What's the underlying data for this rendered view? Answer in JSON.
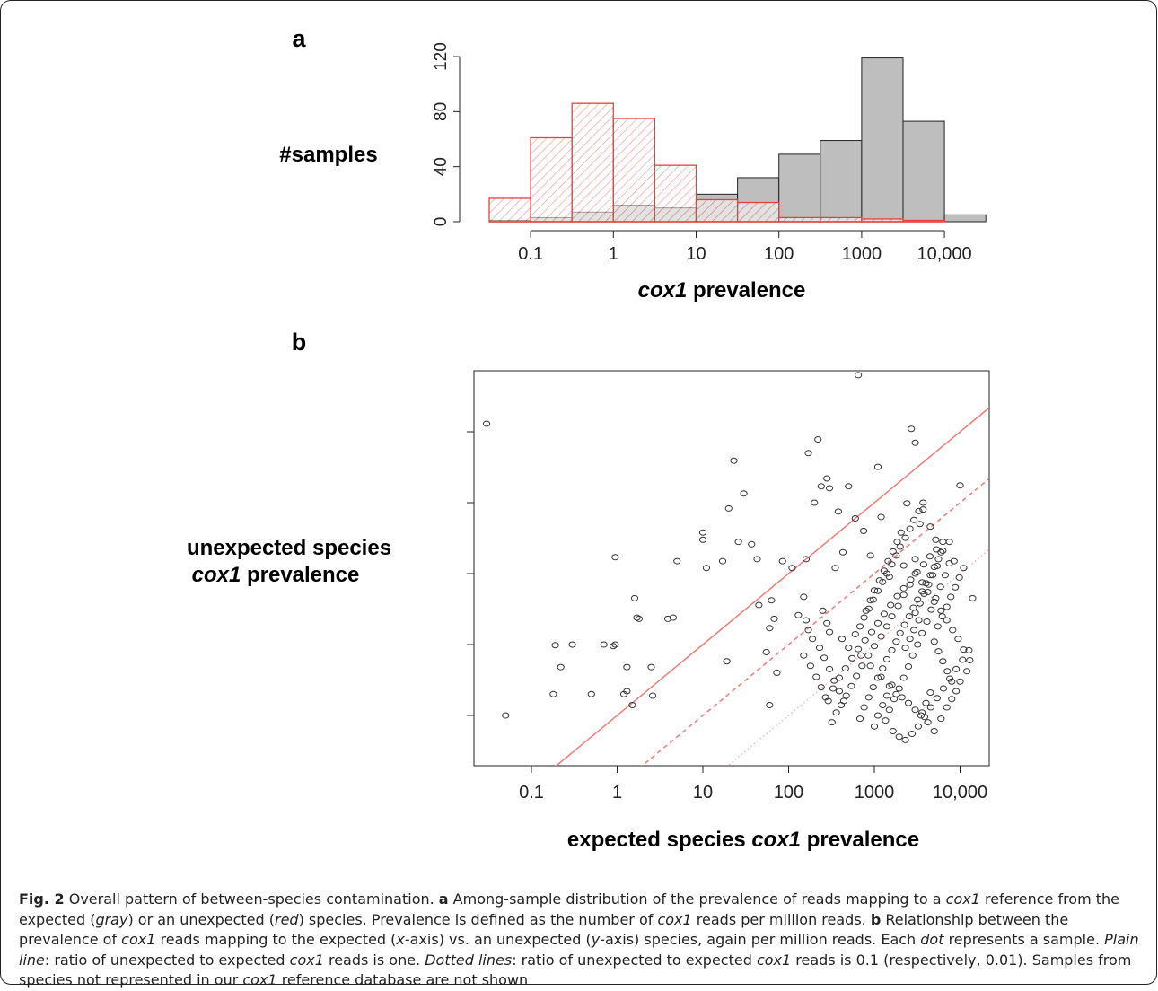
{
  "panel_a": {
    "letter": "a",
    "ylabel": "#samples",
    "xlabel_italic": "cox1",
    "xlabel_rest": " prevalence",
    "y_ticks": [
      "0",
      "40",
      "80",
      "120"
    ],
    "x_ticks": [
      "0.1",
      "1",
      "10",
      "100",
      "1000",
      "10,000"
    ]
  },
  "panel_b": {
    "letter": "b",
    "ylabel_line1": "unexpected species",
    "ylabel_line2_italic": "cox1",
    "ylabel_line2_rest": " prevalence",
    "xlabel_prefix": "expected species ",
    "xlabel_italic": "cox1",
    "xlabel_rest": " prevalence",
    "x_ticks": [
      "0.1",
      "1",
      "10",
      "100",
      "1000",
      "10,000"
    ]
  },
  "colors": {
    "gray_bar": "#bebebe",
    "red": "#e8413c",
    "red_line": "#f07a75",
    "dotted_line": "#f2a8a5",
    "axis": "#222222"
  },
  "chart_data": [
    {
      "type": "bar",
      "x_scale": "log10",
      "bin_edges": [
        0.0316,
        0.1,
        0.316,
        1,
        3.16,
        10,
        31.6,
        100,
        316,
        1000,
        3160,
        10000,
        31600
      ],
      "ylim": [
        0,
        125
      ],
      "series": [
        {
          "name": "gray",
          "values": [
            1,
            3,
            7,
            12,
            10,
            20,
            32,
            49,
            59,
            119,
            73,
            5
          ]
        },
        {
          "name": "red",
          "values": [
            17,
            61,
            86,
            75,
            41,
            16,
            14,
            3,
            3,
            2,
            1,
            0
          ]
        }
      ]
    },
    {
      "type": "scatter",
      "x_scale": "log10",
      "y_scale": "log10",
      "xlim": [
        0.02,
        20000
      ],
      "ylim": [
        0.02,
        100000
      ],
      "lines": [
        {
          "ratio": 1,
          "style": "solid"
        },
        {
          "ratio": 0.1,
          "style": "dashed"
        },
        {
          "ratio": 0.01,
          "style": "dotted"
        }
      ],
      "points": [
        [
          0.03,
          13000
        ],
        [
          0.05,
          1.0
        ],
        [
          0.18,
          2.0
        ],
        [
          0.19,
          9.8
        ],
        [
          0.22,
          4.8
        ],
        [
          0.3,
          10
        ],
        [
          0.5,
          2.0
        ],
        [
          0.7,
          10
        ],
        [
          0.9,
          9.5
        ],
        [
          0.95,
          10
        ],
        [
          0.95,
          170
        ],
        [
          1.2,
          2.0
        ],
        [
          1.3,
          2.2
        ],
        [
          1.5,
          1.4
        ],
        [
          1.3,
          4.8
        ],
        [
          1.6,
          45
        ],
        [
          1.7,
          24
        ],
        [
          1.8,
          23
        ],
        [
          2.5,
          4.8
        ],
        [
          2.6,
          1.9
        ],
        [
          3.9,
          23
        ],
        [
          4.5,
          24
        ],
        [
          5.0,
          150
        ],
        [
          10,
          380
        ],
        [
          10,
          300
        ],
        [
          11,
          120
        ],
        [
          17,
          150
        ],
        [
          19,
          5.8
        ],
        [
          20,
          830
        ],
        [
          23,
          3900
        ],
        [
          26,
          280
        ],
        [
          30,
          1350
        ],
        [
          37,
          260
        ],
        [
          43,
          160
        ],
        [
          45,
          36
        ],
        [
          60,
          1.4
        ],
        [
          55,
          7.8
        ],
        [
          60,
          17
        ],
        [
          63,
          42
        ],
        [
          68,
          23
        ],
        [
          73,
          4.0
        ],
        [
          85,
          150
        ],
        [
          110,
          120
        ],
        [
          130,
          26
        ],
        [
          150,
          47
        ],
        [
          160,
          160
        ],
        [
          170,
          5000
        ],
        [
          200,
          1000
        ],
        [
          220,
          7800
        ],
        [
          240,
          1700
        ],
        [
          280,
          2200
        ],
        [
          300,
          1600
        ],
        [
          380,
          750
        ],
        [
          430,
          200
        ],
        [
          500,
          1700
        ],
        [
          600,
          600
        ],
        [
          650,
          63000
        ],
        [
          750,
          400
        ],
        [
          1100,
          3200
        ],
        [
          1200,
          630
        ],
        [
          2400,
          980
        ],
        [
          2700,
          11000
        ],
        [
          3000,
          7000
        ],
        [
          3400,
          500
        ],
        [
          3700,
          800
        ],
        [
          4500,
          460
        ],
        [
          10000,
          1750
        ],
        [
          350,
          120
        ],
        [
          900,
          180
        ],
        [
          1500,
          90
        ],
        [
          2200,
          130
        ],
        [
          3000,
          160
        ],
        [
          5200,
          300
        ],
        [
          6000,
          200
        ],
        [
          7500,
          280
        ],
        [
          8500,
          150
        ],
        [
          14000,
          45
        ],
        [
          250,
          30
        ],
        [
          280,
          20
        ],
        [
          300,
          15
        ],
        [
          420,
          12
        ],
        [
          500,
          9
        ],
        [
          700,
          7
        ],
        [
          900,
          5
        ],
        [
          1200,
          3.5
        ],
        [
          1500,
          2.6
        ],
        [
          1800,
          2.0
        ],
        [
          2100,
          1.8
        ],
        [
          2500,
          1.5
        ],
        [
          3000,
          1.2
        ],
        [
          3500,
          1.0
        ],
        [
          4200,
          0.8
        ],
        [
          5000,
          0.6
        ],
        [
          6000,
          0.9
        ],
        [
          7000,
          1.3
        ],
        [
          8000,
          1.7
        ],
        [
          9000,
          2.2
        ],
        [
          10000,
          3.0
        ],
        [
          12000,
          4.2
        ],
        [
          13000,
          6.0
        ],
        [
          11000,
          8.5
        ],
        [
          9500,
          12
        ],
        [
          8200,
          16
        ],
        [
          7000,
          22
        ],
        [
          6000,
          30
        ],
        [
          5000,
          40
        ],
        [
          4200,
          55
        ],
        [
          3600,
          75
        ],
        [
          3000,
          100
        ],
        [
          2600,
          70
        ],
        [
          2200,
          50
        ],
        [
          1900,
          35
        ],
        [
          1600,
          25
        ],
        [
          1400,
          18
        ],
        [
          1200,
          13
        ],
        [
          1000,
          9.5
        ],
        [
          850,
          7.0
        ],
        [
          720,
          5.0
        ],
        [
          620,
          3.6
        ],
        [
          540,
          2.6
        ],
        [
          470,
          1.9
        ],
        [
          410,
          1.4
        ],
        [
          360,
          1.1
        ],
        [
          320,
          0.8
        ],
        [
          290,
          1.6
        ],
        [
          330,
          2.4
        ],
        [
          390,
          3.4
        ],
        [
          460,
          4.6
        ],
        [
          550,
          6.4
        ],
        [
          650,
          8.6
        ],
        [
          780,
          11.5
        ],
        [
          930,
          15
        ],
        [
          1100,
          20
        ],
        [
          1300,
          27
        ],
        [
          1550,
          36
        ],
        [
          1850,
          48
        ],
        [
          2200,
          62
        ],
        [
          2650,
          82
        ],
        [
          3150,
          105
        ],
        [
          3750,
          135
        ],
        [
          4450,
          175
        ],
        [
          5300,
          220
        ],
        [
          6300,
          280
        ],
        [
          7500,
          140
        ],
        [
          6700,
          95
        ],
        [
          5900,
          65
        ],
        [
          5200,
          45
        ],
        [
          4600,
          31
        ],
        [
          4100,
          21
        ],
        [
          3600,
          14.5
        ],
        [
          3200,
          10
        ],
        [
          2800,
          7
        ],
        [
          2500,
          4.9
        ],
        [
          2200,
          3.4
        ],
        [
          1950,
          2.4
        ],
        [
          1700,
          1.7
        ],
        [
          1500,
          1.2
        ],
        [
          1350,
          0.85
        ],
        [
          1650,
          0.6
        ],
        [
          1950,
          0.5
        ],
        [
          2300,
          0.45
        ],
        [
          2750,
          0.55
        ],
        [
          3250,
          0.7
        ],
        [
          3850,
          0.95
        ],
        [
          4550,
          1.3
        ],
        [
          5400,
          1.75
        ],
        [
          6400,
          2.4
        ],
        [
          7600,
          3.3
        ],
        [
          9000,
          4.5
        ],
        [
          10700,
          6.1
        ],
        [
          12700,
          8.3
        ],
        [
          800,
          30
        ],
        [
          900,
          42
        ],
        [
          1000,
          58
        ],
        [
          1150,
          80
        ],
        [
          1300,
          110
        ],
        [
          1450,
          150
        ],
        [
          1650,
          205
        ],
        [
          1850,
          280
        ],
        [
          2050,
          380
        ],
        [
          230,
          9
        ],
        [
          260,
          6.5
        ],
        [
          300,
          4.5
        ],
        [
          340,
          3.1
        ],
        [
          390,
          2.2
        ],
        [
          440,
          1.6
        ],
        [
          190,
          12
        ],
        [
          170,
          16
        ],
        [
          160,
          22
        ],
        [
          150,
          7
        ],
        [
          180,
          5
        ],
        [
          210,
          3.5
        ],
        [
          240,
          2.5
        ],
        [
          270,
          1.8
        ],
        [
          600,
          14
        ],
        [
          680,
          18
        ],
        [
          760,
          24
        ],
        [
          860,
          32
        ],
        [
          970,
          43
        ],
        [
          1100,
          57
        ],
        [
          1250,
          76
        ],
        [
          1400,
          100
        ],
        [
          1600,
          135
        ],
        [
          1800,
          180
        ],
        [
          2000,
          240
        ],
        [
          2300,
          320
        ],
        [
          2600,
          430
        ],
        [
          2900,
          570
        ],
        [
          3300,
          760
        ],
        [
          3700,
          1000
        ],
        [
          5500,
          18
        ],
        [
          6200,
          25
        ],
        [
          7000,
          34
        ],
        [
          7800,
          47
        ],
        [
          8800,
          64
        ],
        [
          9800,
          88
        ],
        [
          11000,
          120
        ],
        [
          5000,
          11
        ],
        [
          5600,
          8
        ],
        [
          6300,
          5.8
        ],
        [
          7100,
          4.2
        ],
        [
          8000,
          3.0
        ],
        [
          4500,
          2.1
        ],
        [
          4000,
          1.5
        ],
        [
          3600,
          1.1
        ],
        [
          1000,
          0.7
        ],
        [
          1100,
          1.0
        ],
        [
          1250,
          1.4
        ],
        [
          1400,
          1.9
        ],
        [
          1600,
          2.7
        ],
        [
          680,
          0.9
        ],
        [
          760,
          1.3
        ],
        [
          860,
          1.8
        ],
        [
          970,
          2.5
        ],
        [
          1100,
          3.4
        ],
        [
          1250,
          4.6
        ],
        [
          1400,
          6.2
        ],
        [
          1600,
          8.3
        ],
        [
          1800,
          11
        ],
        [
          2000,
          14.5
        ],
        [
          2250,
          19
        ],
        [
          2550,
          25
        ],
        [
          2850,
          33
        ],
        [
          3200,
          43
        ],
        [
          3600,
          56
        ],
        [
          4000,
          73
        ],
        [
          4500,
          95
        ],
        [
          5000,
          124
        ],
        [
          5600,
          160
        ],
        [
          6300,
          210
        ],
        [
          3000,
          28
        ],
        [
          3400,
          38
        ],
        [
          3800,
          52
        ],
        [
          4300,
          70
        ],
        [
          4800,
          95
        ],
        [
          5400,
          128
        ],
        [
          2300,
          9
        ],
        [
          2600,
          12
        ],
        [
          2900,
          16
        ],
        [
          3300,
          22
        ]
      ]
    }
  ],
  "caption": {
    "fig": "Fig. 2",
    "title": " Overall pattern of between-species contamination. ",
    "a": "a",
    "a_text": " Among-sample distribution of the prevalence of reads mapping to a ",
    "cox1": "cox1",
    "a_text2": " reference from the expected (",
    "gray": "gray",
    "a_text3": ") or an unexpected (",
    "red": "red",
    "a_text4": ") species. Prevalence is defined as the number of ",
    "a_text5": " reads per million reads. ",
    "b": "b",
    "b_text": " Relationship between the prevalence of ",
    "b_text2": " reads mapping to the expected (",
    "x": "x",
    "b_text3": "-axis) vs. an unexpected (",
    "y": "y",
    "b_text4": "-axis) species, again per million reads. Each ",
    "dot": "dot",
    "b_text5": " represents a sample. ",
    "plain": "Plain line",
    "b_text6": ": ratio of unexpected to expected ",
    "b_text7": " reads is one. ",
    "dotted": "Dotted lines",
    "b_text8": ": ratio of unexpected to expected ",
    "b_text9": " reads is 0.1 (respectively, 0.01). Samples from species not represented in our ",
    "b_text10": " reference database are not shown"
  }
}
